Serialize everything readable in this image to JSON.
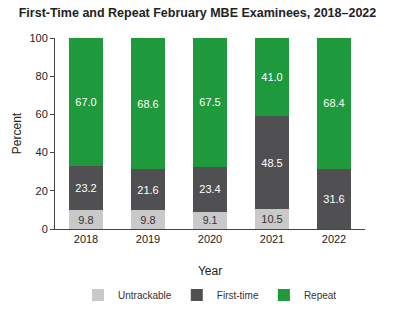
{
  "chart_data": {
    "type": "bar",
    "title": "First-Time and Repeat February MBE Examinees, 2018–2022",
    "x_label": "Year",
    "y_label": "Percent",
    "categories": [
      "2018",
      "2019",
      "2020",
      "2021",
      "2022"
    ],
    "series": [
      {
        "name": "Untrackable",
        "color": "#c9c9c9",
        "values": [
          9.8,
          9.8,
          9.1,
          10.5,
          null
        ]
      },
      {
        "name": "First-time",
        "color": "#505052",
        "values": [
          23.2,
          21.6,
          23.4,
          48.5,
          31.6
        ]
      },
      {
        "name": "Repeat",
        "color": "#1e9a3c",
        "values": [
          67.0,
          68.6,
          67.5,
          41.0,
          68.4
        ],
        "value_labels": [
          "67.0",
          "68.6",
          "67.5",
          "41.0",
          "68.4"
        ]
      }
    ],
    "stacked": true,
    "data_labels": true,
    "ylim": [
      0,
      100
    ],
    "yticks": [
      0,
      20,
      40,
      60,
      80,
      100
    ],
    "grid": false,
    "legend": "bottom"
  }
}
